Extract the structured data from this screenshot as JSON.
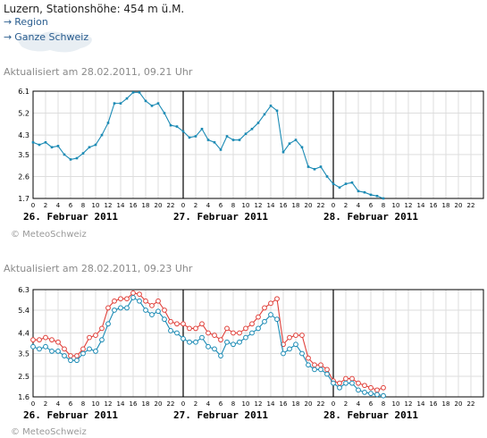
{
  "header": {
    "station_line": "Luzern, Stationshöhe: 454 m ü.M.",
    "links": [
      "Region",
      "Ganze Schweiz"
    ],
    "arrow_icon": "arrow-right-icon"
  },
  "charts": [
    {
      "updated": "Aktualisiert am 28.02.2011, 09.21 Uhr",
      "copyright": "© MeteoSchweiz"
    },
    {
      "updated": "Aktualisiert am 28.02.2011, 09.23 Uhr",
      "copyright": "© MeteoSchweiz"
    }
  ],
  "colors": {
    "blue": "#1a8ab4",
    "red": "#e0403a",
    "grid": "#dddddd"
  },
  "chart_data": [
    {
      "type": "line",
      "title": "",
      "xlabel": "",
      "ylabel": "",
      "ylim": [
        1.7,
        6.1
      ],
      "yticks": [
        "6.1",
        "5.2",
        "4.3",
        "3.5",
        "2.6",
        "1.7"
      ],
      "xticks": [
        "0",
        "2",
        "4",
        "6",
        "8",
        "10",
        "12",
        "14",
        "16",
        "18",
        "20",
        "22",
        "0",
        "2",
        "4",
        "6",
        "8",
        "10",
        "12",
        "14",
        "16",
        "18",
        "20",
        "22",
        "0",
        "2",
        "4",
        "6",
        "8",
        "10",
        "12",
        "14",
        "16",
        "18",
        "20",
        "22"
      ],
      "day_labels": [
        "26. Februar 2011",
        "27. Februar 2011",
        "28. Februar 2011"
      ],
      "hours_per_day": 24,
      "series": [
        {
          "color": "#1a8ab4",
          "values": [
            4.0,
            3.9,
            4.0,
            3.8,
            3.85,
            3.5,
            3.3,
            3.35,
            3.55,
            3.8,
            3.9,
            4.3,
            4.8,
            5.6,
            5.6,
            5.8,
            6.05,
            6.05,
            5.7,
            5.5,
            5.6,
            5.2,
            4.7,
            4.65,
            4.45,
            4.2,
            4.25,
            4.55,
            4.1,
            4.0,
            3.7,
            4.25,
            4.1,
            4.1,
            4.35,
            4.55,
            4.8,
            5.15,
            5.5,
            5.3,
            3.6,
            3.95,
            4.1,
            3.8,
            3.0,
            2.9,
            3.0,
            2.6,
            2.3,
            2.15,
            2.3,
            2.35,
            2.0,
            1.95,
            1.85,
            1.8,
            1.7
          ]
        }
      ]
    },
    {
      "type": "line",
      "title": "",
      "xlabel": "",
      "ylabel": "",
      "ylim": [
        1.6,
        6.3
      ],
      "yticks": [
        "6.3",
        "5.4",
        "4.4",
        "3.5",
        "2.5",
        "1.6"
      ],
      "xticks": [
        "0",
        "2",
        "4",
        "6",
        "8",
        "10",
        "12",
        "14",
        "16",
        "18",
        "20",
        "22",
        "0",
        "2",
        "4",
        "6",
        "8",
        "10",
        "12",
        "14",
        "16",
        "18",
        "20",
        "22",
        "0",
        "2",
        "4",
        "6",
        "8",
        "10",
        "12",
        "14",
        "16",
        "18",
        "20",
        "22"
      ],
      "day_labels": [
        "26. Februar 2011",
        "27. Februar 2011",
        "28. Februar 2011"
      ],
      "hours_per_day": 24,
      "series": [
        {
          "color": "#e0403a",
          "values": [
            4.1,
            4.1,
            4.2,
            4.1,
            4.0,
            3.7,
            3.4,
            3.4,
            3.7,
            4.2,
            4.3,
            4.6,
            5.5,
            5.8,
            5.9,
            5.9,
            6.15,
            6.1,
            5.8,
            5.6,
            5.8,
            5.4,
            4.9,
            4.8,
            4.8,
            4.6,
            4.6,
            4.8,
            4.4,
            4.3,
            4.1,
            4.6,
            4.4,
            4.4,
            4.6,
            4.8,
            5.1,
            5.5,
            5.7,
            5.9,
            3.9,
            4.2,
            4.3,
            4.3,
            3.3,
            3.0,
            3.0,
            2.8,
            2.3,
            2.2,
            2.4,
            2.4,
            2.2,
            2.1,
            2.0,
            1.9,
            2.0
          ]
        },
        {
          "color": "#1a8ab4",
          "values": [
            3.8,
            3.7,
            3.8,
            3.6,
            3.6,
            3.4,
            3.2,
            3.2,
            3.5,
            3.7,
            3.6,
            4.1,
            4.8,
            5.4,
            5.5,
            5.5,
            5.95,
            5.8,
            5.4,
            5.2,
            5.35,
            5.0,
            4.5,
            4.4,
            4.15,
            4.0,
            4.0,
            4.2,
            3.8,
            3.7,
            3.4,
            4.0,
            3.9,
            4.0,
            4.2,
            4.4,
            4.6,
            4.9,
            5.2,
            5.0,
            3.5,
            3.7,
            3.9,
            3.5,
            3.0,
            2.8,
            2.8,
            2.6,
            2.2,
            2.0,
            2.2,
            2.2,
            1.9,
            1.8,
            1.75,
            1.7,
            1.65
          ]
        }
      ]
    }
  ]
}
